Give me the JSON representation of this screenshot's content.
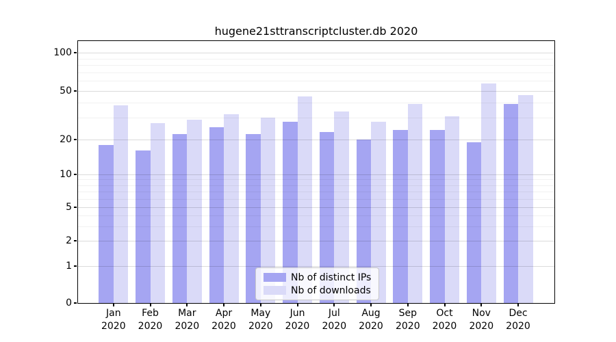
{
  "chart_data": {
    "type": "bar",
    "title": "hugene21sttranscriptcluster.db 2020",
    "categories": [
      "Jan",
      "Feb",
      "Mar",
      "Apr",
      "May",
      "Jun",
      "Jul",
      "Aug",
      "Sep",
      "Oct",
      "Nov",
      "Dec"
    ],
    "year_label": "2020",
    "series": [
      {
        "name": "Nb of distinct IPs",
        "color": "#a5a5f2",
        "values": [
          18,
          16,
          22,
          25,
          22,
          28,
          23,
          20,
          24,
          24,
          19,
          39
        ]
      },
      {
        "name": "Nb of downloads",
        "color": "#dadaf8",
        "values": [
          38,
          27,
          29,
          32,
          30,
          45,
          34,
          28,
          39,
          31,
          57,
          46
        ]
      }
    ],
    "yticks": [
      0,
      1,
      2,
      5,
      10,
      20,
      50,
      100
    ],
    "minor_yticks": [
      3,
      4,
      6,
      7,
      8,
      9,
      30,
      40,
      60,
      70,
      80,
      90
    ],
    "ylim": [
      0,
      100
    ],
    "yscale": "log-like with 0 baseline",
    "xlabel": "",
    "ylabel": "",
    "grid": true,
    "legend_position": "lower center"
  }
}
